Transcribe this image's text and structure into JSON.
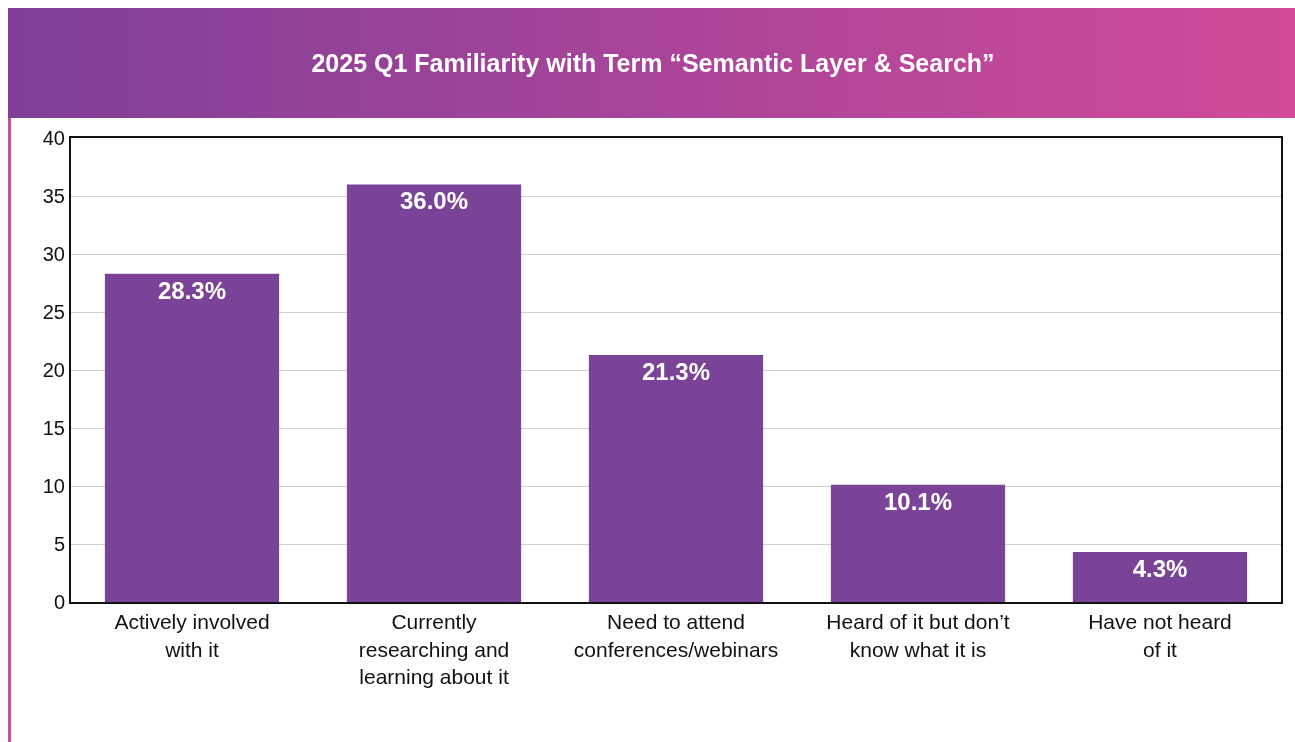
{
  "chart_data": {
    "type": "bar",
    "title": "2025 Q1 Familiarity with Term “Semantic Layer & Search”",
    "categories": [
      "Actively involved\nwith it",
      "Currently\nresearching and\nlearning about it",
      "Need to attend\nconferences/webinars",
      "Heard of it but don’t\nknow what it is",
      "Have not heard\nof it"
    ],
    "values": [
      28.3,
      36.0,
      21.3,
      10.1,
      4.3
    ],
    "value_labels": [
      "28.3%",
      "36.0%",
      "21.3%",
      "10.1%",
      "4.3%"
    ],
    "color": "#7b4397",
    "ylim": [
      0,
      40
    ],
    "yticks": [
      0,
      5,
      10,
      15,
      20,
      25,
      30,
      35,
      40
    ],
    "grid": "y"
  }
}
